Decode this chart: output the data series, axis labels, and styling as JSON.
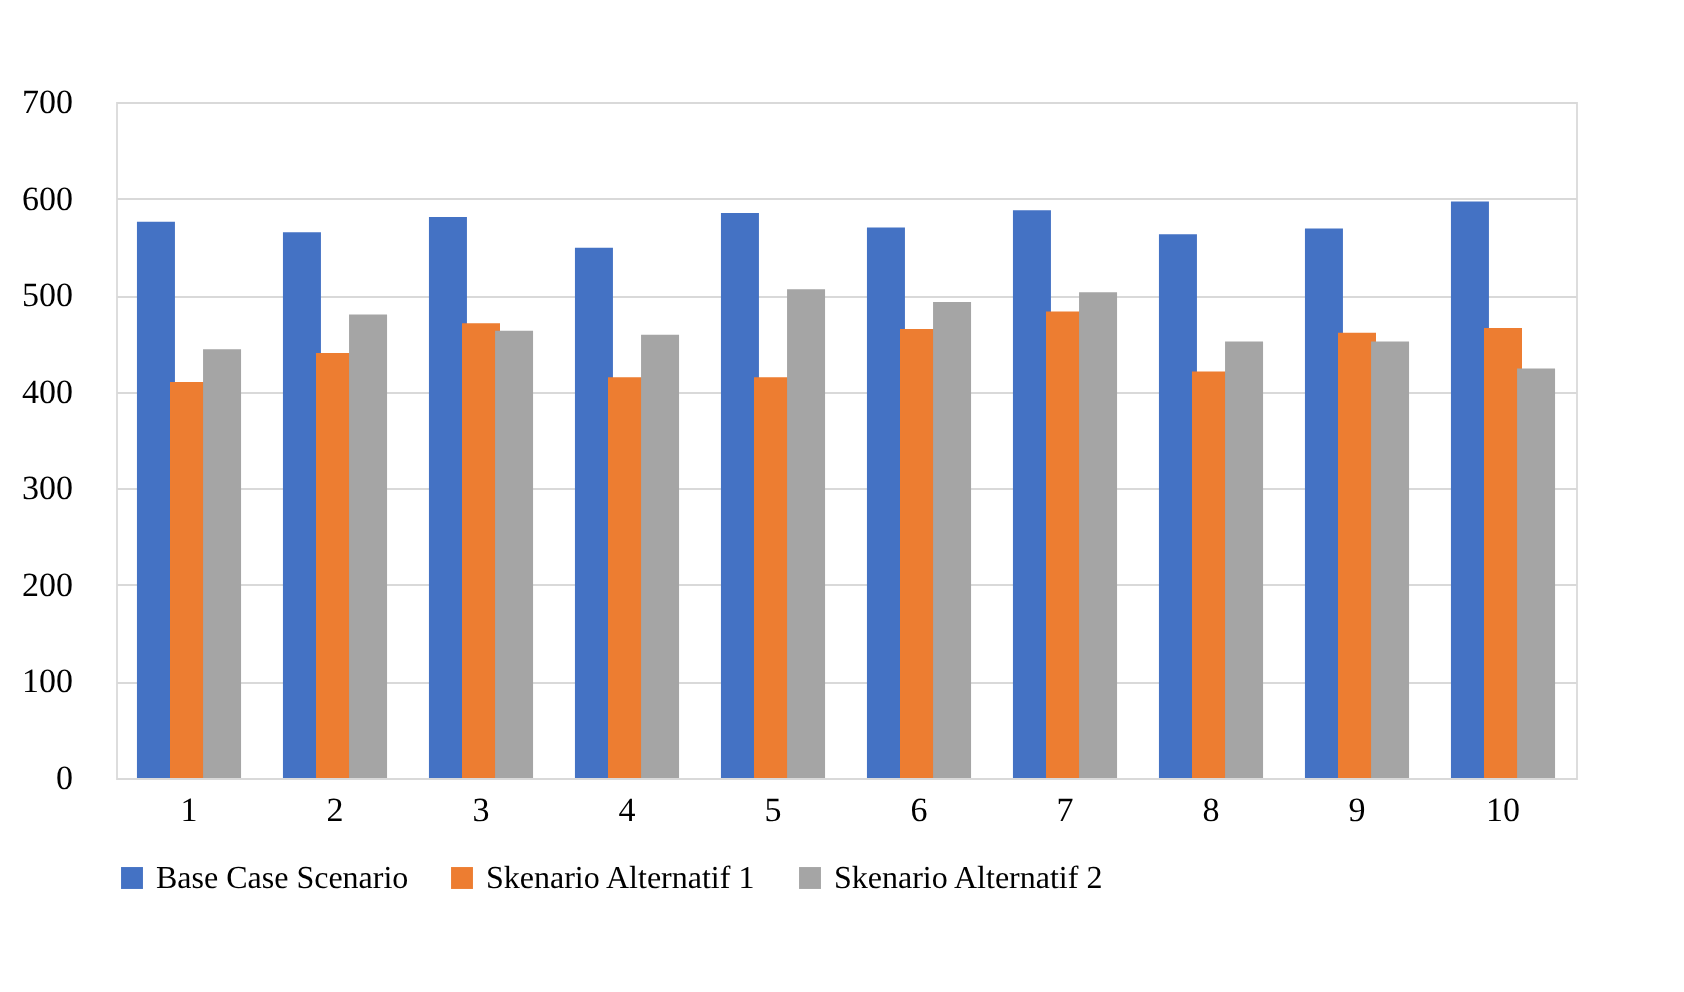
{
  "chart_data": {
    "type": "bar",
    "categories": [
      "1",
      "2",
      "3",
      "4",
      "5",
      "6",
      "7",
      "8",
      "9",
      "10"
    ],
    "series": [
      {
        "name": "Base Case Scenario",
        "color": "#4472c4",
        "values": [
          576,
          565,
          581,
          549,
          585,
          570,
          588,
          563,
          569,
          597
        ]
      },
      {
        "name": "Skenario Alternatif 1",
        "color": "#ed7d31",
        "values": [
          410,
          440,
          471,
          415,
          415,
          465,
          483,
          421,
          461,
          466
        ]
      },
      {
        "name": "Skenario Alternatif 2",
        "color": "#a5a5a5",
        "values": [
          444,
          480,
          463,
          459,
          506,
          493,
          503,
          452,
          452,
          424
        ]
      }
    ],
    "ylim": [
      0,
      700
    ],
    "yticks": [
      0,
      100,
      200,
      300,
      400,
      500,
      600,
      700
    ],
    "grid": "y",
    "legend": "bottom"
  }
}
